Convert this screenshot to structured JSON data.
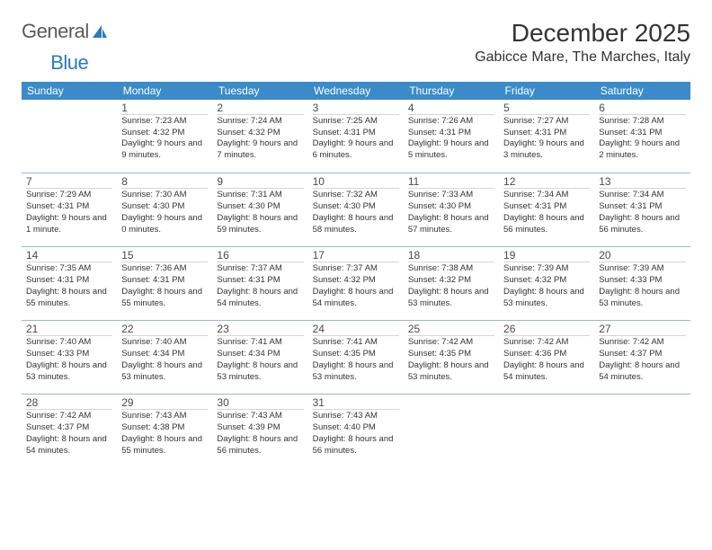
{
  "logo": {
    "text_general": "General",
    "text_blue": "Blue"
  },
  "title": "December 2025",
  "location": "Gabicce Mare, The Marches, Italy",
  "colors": {
    "header_bg": "#3b8bc9",
    "header_text": "#ffffff",
    "row_border": "#9cb7cc",
    "daynum_border": "#cfd8de",
    "body_text": "#333333",
    "logo_gray": "#5a5a5a",
    "logo_blue": "#2b7bbf",
    "page_bg": "#ffffff"
  },
  "weekdays": [
    "Sunday",
    "Monday",
    "Tuesday",
    "Wednesday",
    "Thursday",
    "Friday",
    "Saturday"
  ],
  "weeks": [
    [
      {
        "n": "",
        "sr": "",
        "ss": "",
        "dl": ""
      },
      {
        "n": "1",
        "sr": "Sunrise: 7:23 AM",
        "ss": "Sunset: 4:32 PM",
        "dl": "Daylight: 9 hours and 9 minutes."
      },
      {
        "n": "2",
        "sr": "Sunrise: 7:24 AM",
        "ss": "Sunset: 4:32 PM",
        "dl": "Daylight: 9 hours and 7 minutes."
      },
      {
        "n": "3",
        "sr": "Sunrise: 7:25 AM",
        "ss": "Sunset: 4:31 PM",
        "dl": "Daylight: 9 hours and 6 minutes."
      },
      {
        "n": "4",
        "sr": "Sunrise: 7:26 AM",
        "ss": "Sunset: 4:31 PM",
        "dl": "Daylight: 9 hours and 5 minutes."
      },
      {
        "n": "5",
        "sr": "Sunrise: 7:27 AM",
        "ss": "Sunset: 4:31 PM",
        "dl": "Daylight: 9 hours and 3 minutes."
      },
      {
        "n": "6",
        "sr": "Sunrise: 7:28 AM",
        "ss": "Sunset: 4:31 PM",
        "dl": "Daylight: 9 hours and 2 minutes."
      }
    ],
    [
      {
        "n": "7",
        "sr": "Sunrise: 7:29 AM",
        "ss": "Sunset: 4:31 PM",
        "dl": "Daylight: 9 hours and 1 minute."
      },
      {
        "n": "8",
        "sr": "Sunrise: 7:30 AM",
        "ss": "Sunset: 4:30 PM",
        "dl": "Daylight: 9 hours and 0 minutes."
      },
      {
        "n": "9",
        "sr": "Sunrise: 7:31 AM",
        "ss": "Sunset: 4:30 PM",
        "dl": "Daylight: 8 hours and 59 minutes."
      },
      {
        "n": "10",
        "sr": "Sunrise: 7:32 AM",
        "ss": "Sunset: 4:30 PM",
        "dl": "Daylight: 8 hours and 58 minutes."
      },
      {
        "n": "11",
        "sr": "Sunrise: 7:33 AM",
        "ss": "Sunset: 4:30 PM",
        "dl": "Daylight: 8 hours and 57 minutes."
      },
      {
        "n": "12",
        "sr": "Sunrise: 7:34 AM",
        "ss": "Sunset: 4:31 PM",
        "dl": "Daylight: 8 hours and 56 minutes."
      },
      {
        "n": "13",
        "sr": "Sunrise: 7:34 AM",
        "ss": "Sunset: 4:31 PM",
        "dl": "Daylight: 8 hours and 56 minutes."
      }
    ],
    [
      {
        "n": "14",
        "sr": "Sunrise: 7:35 AM",
        "ss": "Sunset: 4:31 PM",
        "dl": "Daylight: 8 hours and 55 minutes."
      },
      {
        "n": "15",
        "sr": "Sunrise: 7:36 AM",
        "ss": "Sunset: 4:31 PM",
        "dl": "Daylight: 8 hours and 55 minutes."
      },
      {
        "n": "16",
        "sr": "Sunrise: 7:37 AM",
        "ss": "Sunset: 4:31 PM",
        "dl": "Daylight: 8 hours and 54 minutes."
      },
      {
        "n": "17",
        "sr": "Sunrise: 7:37 AM",
        "ss": "Sunset: 4:32 PM",
        "dl": "Daylight: 8 hours and 54 minutes."
      },
      {
        "n": "18",
        "sr": "Sunrise: 7:38 AM",
        "ss": "Sunset: 4:32 PM",
        "dl": "Daylight: 8 hours and 53 minutes."
      },
      {
        "n": "19",
        "sr": "Sunrise: 7:39 AM",
        "ss": "Sunset: 4:32 PM",
        "dl": "Daylight: 8 hours and 53 minutes."
      },
      {
        "n": "20",
        "sr": "Sunrise: 7:39 AM",
        "ss": "Sunset: 4:33 PM",
        "dl": "Daylight: 8 hours and 53 minutes."
      }
    ],
    [
      {
        "n": "21",
        "sr": "Sunrise: 7:40 AM",
        "ss": "Sunset: 4:33 PM",
        "dl": "Daylight: 8 hours and 53 minutes."
      },
      {
        "n": "22",
        "sr": "Sunrise: 7:40 AM",
        "ss": "Sunset: 4:34 PM",
        "dl": "Daylight: 8 hours and 53 minutes."
      },
      {
        "n": "23",
        "sr": "Sunrise: 7:41 AM",
        "ss": "Sunset: 4:34 PM",
        "dl": "Daylight: 8 hours and 53 minutes."
      },
      {
        "n": "24",
        "sr": "Sunrise: 7:41 AM",
        "ss": "Sunset: 4:35 PM",
        "dl": "Daylight: 8 hours and 53 minutes."
      },
      {
        "n": "25",
        "sr": "Sunrise: 7:42 AM",
        "ss": "Sunset: 4:35 PM",
        "dl": "Daylight: 8 hours and 53 minutes."
      },
      {
        "n": "26",
        "sr": "Sunrise: 7:42 AM",
        "ss": "Sunset: 4:36 PM",
        "dl": "Daylight: 8 hours and 54 minutes."
      },
      {
        "n": "27",
        "sr": "Sunrise: 7:42 AM",
        "ss": "Sunset: 4:37 PM",
        "dl": "Daylight: 8 hours and 54 minutes."
      }
    ],
    [
      {
        "n": "28",
        "sr": "Sunrise: 7:42 AM",
        "ss": "Sunset: 4:37 PM",
        "dl": "Daylight: 8 hours and 54 minutes."
      },
      {
        "n": "29",
        "sr": "Sunrise: 7:43 AM",
        "ss": "Sunset: 4:38 PM",
        "dl": "Daylight: 8 hours and 55 minutes."
      },
      {
        "n": "30",
        "sr": "Sunrise: 7:43 AM",
        "ss": "Sunset: 4:39 PM",
        "dl": "Daylight: 8 hours and 56 minutes."
      },
      {
        "n": "31",
        "sr": "Sunrise: 7:43 AM",
        "ss": "Sunset: 4:40 PM",
        "dl": "Daylight: 8 hours and 56 minutes."
      },
      {
        "n": "",
        "sr": "",
        "ss": "",
        "dl": ""
      },
      {
        "n": "",
        "sr": "",
        "ss": "",
        "dl": ""
      },
      {
        "n": "",
        "sr": "",
        "ss": "",
        "dl": ""
      }
    ]
  ]
}
